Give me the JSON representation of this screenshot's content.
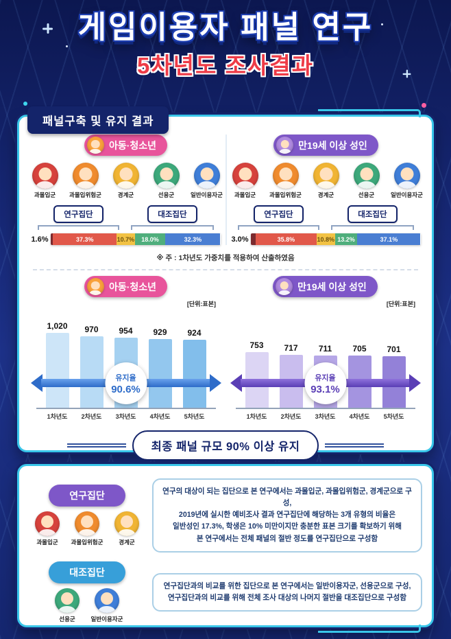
{
  "title": {
    "main": "게임이용자 패널 연구",
    "sub": "5차년도 조사결과"
  },
  "colors": {
    "background_navy": "#15256f",
    "accent_cyan": "#39c6e9",
    "header_navy": "#14246a"
  },
  "panel_build": {
    "header": "패널구축 및 유지 결과",
    "research_label": "연구집단",
    "control_label": "대조집단",
    "note": "※ 주 : 1차년도 가중치를 적용하여 산출하였음",
    "icons": [
      {
        "key": "over-immersion-group",
        "label": "과몰입군",
        "color": "#d6423c"
      },
      {
        "key": "over-immersion-risk-group",
        "label": "과몰입위험군",
        "color": "#ef8b2e"
      },
      {
        "key": "boundary-group",
        "label": "경계군",
        "color": "#f0b434"
      },
      {
        "key": "healthy-use-group",
        "label": "선용군",
        "color": "#3da87b"
      },
      {
        "key": "general-user-group",
        "label": "일반이용자군",
        "color": "#3f7ed8"
      }
    ],
    "columns": [
      {
        "name": "아동·청소년",
        "badge_color": "#e8549b",
        "avatar_color": "#f9a13b",
        "outside_label": "1.6%",
        "research_span": 49.6,
        "control_span": 50.4
      },
      {
        "name": "만19세 이상 성인",
        "badge_color": "#7e57c8",
        "avatar_color": "#b08ae0",
        "outside_label": "3.0%",
        "research_span": 49.6,
        "control_span": 50.4
      }
    ]
  },
  "summary": "최종 패널 규모 90% 이상 유지",
  "groups_panel": {
    "rows": [
      {
        "badge": "연구집단",
        "badge_color": "#7e57c8",
        "icon_indexes": "0,1,2",
        "text": "연구의 대상이 되는 집단으로 본 연구에서는 과몰입군, 과몰입위험군, 경계군으로 구성,\n2019년에 실시한 예비조사 결과 연구집단에 해당하는 3개 유형의 비율은\n일반성인 17.3%, 학생은 10% 미만이지만 충분한 표본 크기를 확보하기 위해\n본 연구에서는 전체 패널의 절반 정도를 연구집단으로 구성함"
      },
      {
        "badge": "대조집단",
        "badge_color": "#379fd9",
        "icon_indexes": "3,4",
        "text": "연구집단과의 비교를 위한 집단으로 본 연구에서는 일반이용자군, 선용군으로 구성,\n연구집단과의 비교를 위해 전체 조사 대상의 나머지 절반을 대조집단으로 구성함"
      }
    ]
  },
  "chart_data": [
    {
      "type": "bar",
      "subtype": "stacked-horizontal-percent",
      "title": "아동·청소년",
      "categories": [
        "과몰입군",
        "과몰입위험군",
        "경계군",
        "선용군",
        "일반이용자군"
      ],
      "values": [
        1.6,
        37.3,
        10.7,
        18.0,
        32.3
      ],
      "labels": [
        "1.6%",
        "37.3%",
        "10.7%",
        "18.0%",
        "32.3%"
      ],
      "colors": [
        "#7b2a2e",
        "#e1584a",
        "#f2c244",
        "#4fae7c",
        "#4a7ed2"
      ],
      "label_text_colors": [
        "#111111",
        "#ffffff",
        "#6b5210",
        "#ffffff",
        "#ffffff"
      ],
      "outside_label_index": 0,
      "unit": "%"
    },
    {
      "type": "bar",
      "subtype": "stacked-horizontal-percent",
      "title": "만19세 이상 성인",
      "categories": [
        "과몰입군",
        "과몰입위험군",
        "경계군",
        "선용군",
        "일반이용자군"
      ],
      "values": [
        3.0,
        35.8,
        10.8,
        13.2,
        37.1
      ],
      "labels": [
        "3.0%",
        "35.8%",
        "10.8%",
        "13.2%",
        "37.1%"
      ],
      "colors": [
        "#7b2a2e",
        "#e1584a",
        "#f2c244",
        "#4fae7c",
        "#4a7ed2"
      ],
      "label_text_colors": [
        "#111111",
        "#ffffff",
        "#6b5210",
        "#ffffff",
        "#ffffff"
      ],
      "outside_label_index": 0,
      "unit": "%"
    },
    {
      "type": "bar",
      "title": "아동·청소년",
      "ylabel": "[단위:표본]",
      "categories": [
        "1차년도",
        "2차년도",
        "3차년도",
        "4차년도",
        "5차년도"
      ],
      "values": [
        1020,
        970,
        954,
        929,
        924
      ],
      "value_labels": [
        "1,020",
        "970",
        "954",
        "929",
        "924"
      ],
      "bar_colors": [
        "#cde5f8",
        "#b8dbf5",
        "#a5d1f1",
        "#93c7ee",
        "#82beeb"
      ],
      "retention_label": "유지율",
      "retention_value": "90.6%",
      "arrow_colors": [
        "#6aa2ec",
        "#2e6cc9"
      ],
      "ylim": [
        0,
        1100
      ]
    },
    {
      "type": "bar",
      "title": "만19세 이상 성인",
      "ylabel": "[단위:표본]",
      "categories": [
        "1차년도",
        "2차년도",
        "3차년도",
        "4차년도",
        "5차년도"
      ],
      "values": [
        753,
        717,
        711,
        705,
        701
      ],
      "value_labels": [
        "753",
        "717",
        "711",
        "705",
        "701"
      ],
      "bar_colors": [
        "#dcd5f4",
        "#c9bdee",
        "#b6a7e7",
        "#a494e0",
        "#9381d8"
      ],
      "retention_label": "유지율",
      "retention_value": "93.1%",
      "arrow_colors": [
        "#8f72dc",
        "#5a3eb5"
      ],
      "ylim": [
        0,
        1100
      ]
    }
  ]
}
